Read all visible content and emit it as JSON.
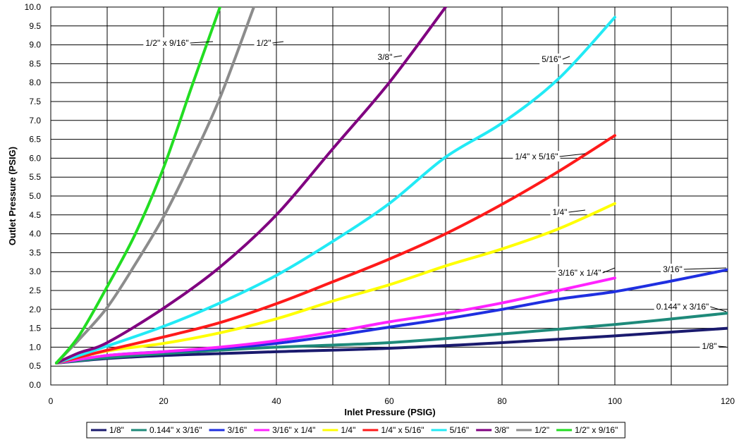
{
  "chart_data": {
    "type": "line",
    "xlabel": "Inlet Pressure  (PSIG)",
    "ylabel": "Outlet Pressure  (PSIG)",
    "xlim": [
      0,
      120
    ],
    "ylim": [
      0,
      10
    ],
    "x_ticks": [
      "0",
      "20",
      "40",
      "60",
      "80",
      "100",
      "120"
    ],
    "y_ticks": [
      "0.0",
      "0.5",
      "1.0",
      "1.5",
      "2.0",
      "2.5",
      "3.0",
      "3.5",
      "4.0",
      "4.5",
      "5.0",
      "5.5",
      "6.0",
      "6.5",
      "7.0",
      "7.5",
      "8.0",
      "8.5",
      "9.0",
      "9.5",
      "10.0"
    ],
    "grid": true,
    "legend_position": "bottom",
    "series": [
      {
        "name": "1/8\"",
        "color": "#1a1a6e",
        "label": "1/8\"",
        "points": [
          [
            1,
            0.58
          ],
          [
            10,
            0.7
          ],
          [
            20,
            0.78
          ],
          [
            30,
            0.83
          ],
          [
            40,
            0.88
          ],
          [
            60,
            0.97
          ],
          [
            80,
            1.12
          ],
          [
            100,
            1.3
          ],
          [
            120,
            1.5
          ]
        ]
      },
      {
        "name": "0.144\" x 3/16\"",
        "color": "#1e8a7a",
        "label": "0.144\" x 3/16\"",
        "points": [
          [
            1,
            0.58
          ],
          [
            10,
            0.72
          ],
          [
            20,
            0.83
          ],
          [
            30,
            0.92
          ],
          [
            40,
            1.0
          ],
          [
            60,
            1.12
          ],
          [
            80,
            1.35
          ],
          [
            100,
            1.6
          ],
          [
            120,
            1.9
          ]
        ]
      },
      {
        "name": "3/16\"",
        "color": "#1f2fe0",
        "label": "3/16\"",
        "points": [
          [
            1,
            0.58
          ],
          [
            10,
            0.78
          ],
          [
            20,
            0.88
          ],
          [
            30,
            0.97
          ],
          [
            40,
            1.1
          ],
          [
            50,
            1.3
          ],
          [
            60,
            1.53
          ],
          [
            70,
            1.75
          ],
          [
            80,
            2.0
          ],
          [
            90,
            2.27
          ],
          [
            100,
            2.47
          ],
          [
            110,
            2.75
          ],
          [
            120,
            3.05
          ]
        ]
      },
      {
        "name": "3/16\" x 1/4\"",
        "color": "#ff22ff",
        "label": "3/16\" x 1/4\"",
        "points": [
          [
            1,
            0.58
          ],
          [
            10,
            0.78
          ],
          [
            20,
            0.88
          ],
          [
            30,
            1.0
          ],
          [
            40,
            1.17
          ],
          [
            50,
            1.4
          ],
          [
            60,
            1.67
          ],
          [
            70,
            1.9
          ],
          [
            80,
            2.17
          ],
          [
            90,
            2.5
          ],
          [
            100,
            2.83
          ]
        ]
      },
      {
        "name": "1/4\"",
        "color": "#ffff00",
        "label": "1/4\"",
        "points": [
          [
            1,
            0.58
          ],
          [
            10,
            0.9
          ],
          [
            20,
            1.1
          ],
          [
            30,
            1.38
          ],
          [
            40,
            1.75
          ],
          [
            50,
            2.22
          ],
          [
            60,
            2.65
          ],
          [
            70,
            3.15
          ],
          [
            80,
            3.6
          ],
          [
            90,
            4.13
          ],
          [
            100,
            4.8
          ]
        ]
      },
      {
        "name": "1/4\" x 5/16\"",
        "color": "#ff1a1a",
        "label": "1/4\" x 5/16\"",
        "points": [
          [
            1,
            0.58
          ],
          [
            10,
            0.92
          ],
          [
            20,
            1.27
          ],
          [
            30,
            1.65
          ],
          [
            40,
            2.15
          ],
          [
            50,
            2.73
          ],
          [
            60,
            3.33
          ],
          [
            70,
            4.0
          ],
          [
            80,
            4.78
          ],
          [
            90,
            5.65
          ],
          [
            100,
            6.6
          ]
        ]
      },
      {
        "name": "5/16\"",
        "color": "#22eaf5",
        "label": "5/16\"",
        "points": [
          [
            1,
            0.58
          ],
          [
            10,
            1.03
          ],
          [
            20,
            1.55
          ],
          [
            30,
            2.17
          ],
          [
            40,
            2.9
          ],
          [
            50,
            3.8
          ],
          [
            60,
            4.8
          ],
          [
            70,
            6.03
          ],
          [
            80,
            6.93
          ],
          [
            90,
            8.1
          ],
          [
            100,
            9.73
          ]
        ]
      },
      {
        "name": "3/8\"",
        "color": "#800080",
        "label": "3/8\"",
        "points": [
          [
            1,
            0.58
          ],
          [
            5,
            0.85
          ],
          [
            10,
            1.12
          ],
          [
            20,
            2.03
          ],
          [
            30,
            3.12
          ],
          [
            40,
            4.5
          ],
          [
            50,
            6.25
          ],
          [
            60,
            8.0
          ],
          [
            70,
            10.0
          ]
        ]
      },
      {
        "name": "1/2\"",
        "color": "#8c8c8c",
        "label": "1/2\"",
        "points": [
          [
            1,
            0.58
          ],
          [
            5,
            1.2
          ],
          [
            10,
            2.05
          ],
          [
            15,
            3.2
          ],
          [
            20,
            4.45
          ],
          [
            25,
            5.95
          ],
          [
            30,
            7.6
          ],
          [
            36,
            10.0
          ]
        ]
      },
      {
        "name": "1/2\" x 9/16\"",
        "color": "#22dd22",
        "label": "1/2\" x 9/16\"",
        "points": [
          [
            1,
            0.58
          ],
          [
            5,
            1.3
          ],
          [
            10,
            2.6
          ],
          [
            15,
            4.0
          ],
          [
            20,
            5.75
          ],
          [
            25,
            7.9
          ],
          [
            30,
            10.0
          ]
        ]
      }
    ]
  }
}
